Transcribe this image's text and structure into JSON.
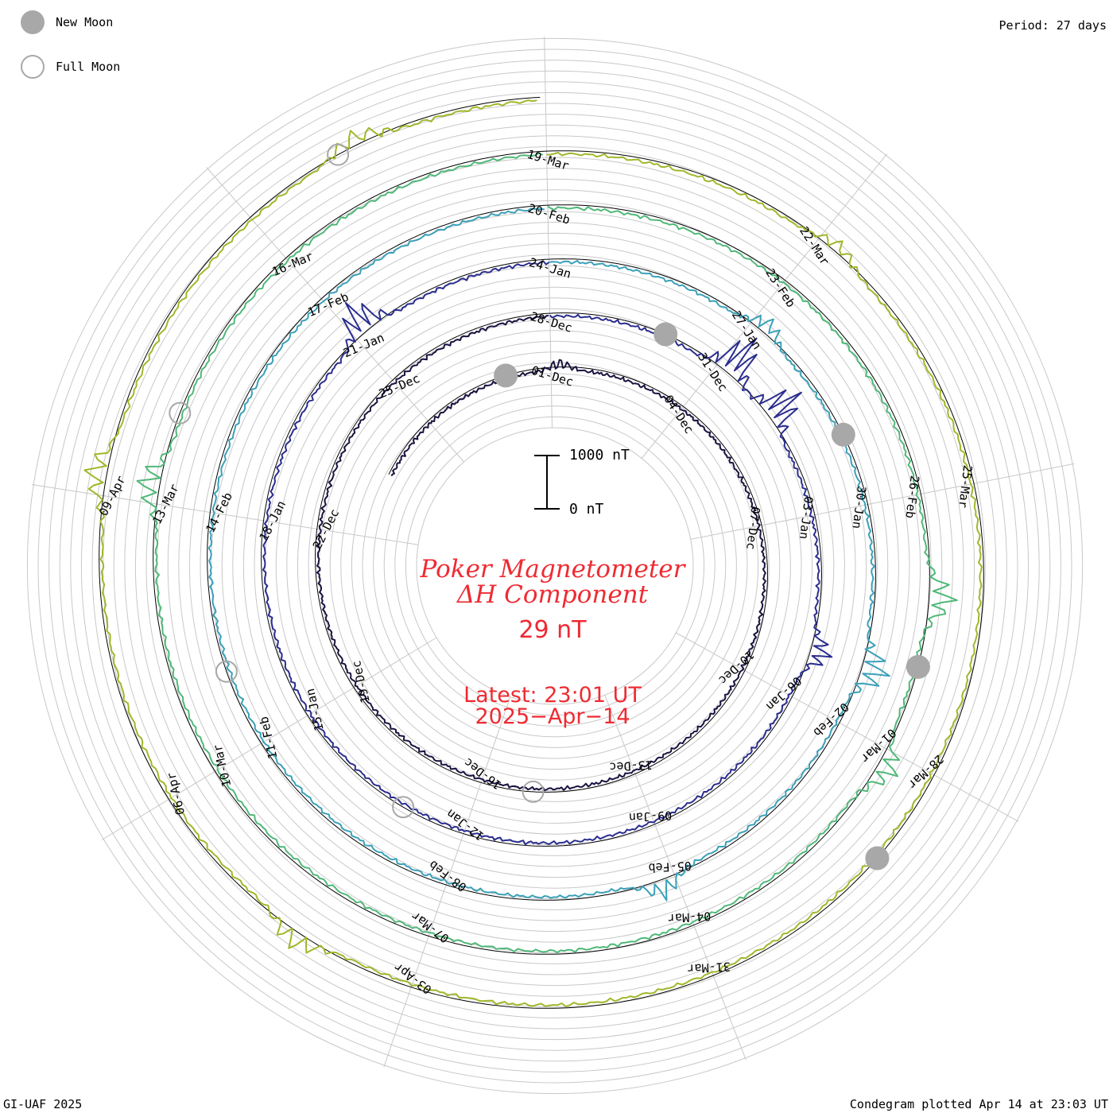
{
  "legend": {
    "new_moon_label": "New Moon",
    "full_moon_label": "Full Moon"
  },
  "period_label": "Period: 27 days",
  "credit": "GI-UAF 2025",
  "plot_stamp": "Condegram plotted Apr 14 at 23:03 UT",
  "chart_data": {
    "type": "line",
    "title_line1": "Poker Magnetometer",
    "title_line2": "ΔH Component",
    "current_value": "29 nT",
    "latest_line1": "Latest: 23:01 UT",
    "latest_line2": "2025−Apr−14",
    "scale_bar": {
      "top_label": "1000 nT",
      "bottom_label": "0 nT",
      "top_value": 1000,
      "bottom_value": 0
    },
    "period_days": 27,
    "colors": {
      "turn1": "#1a1340",
      "turn2": "#2a2d8e",
      "turn3": "#3aa0b8",
      "turn4": "#4fb878",
      "turn5": "#9fb82a",
      "turn6": "#c0861a",
      "turn7": "#b8220e",
      "moon": "#a8a8a8",
      "title": "#ee2b33"
    },
    "date_ticks": [
      "01-Dec",
      "04-Dec",
      "07-Dec",
      "10-Dec",
      "13-Dec",
      "16-Dec",
      "19-Dec",
      "22-Dec",
      "25-Dec",
      "28-Dec",
      "31-Dec",
      "03-Jan",
      "06-Jan",
      "09-Jan",
      "12-Jan",
      "15-Jan",
      "18-Jan",
      "21-Jan",
      "24-Jan",
      "27-Jan",
      "30-Jan",
      "02-Feb",
      "05-Feb",
      "08-Feb",
      "11-Feb",
      "14-Feb",
      "17-Feb",
      "20-Feb",
      "23-Feb",
      "26-Feb",
      "01-Mar",
      "04-Mar",
      "07-Mar",
      "10-Mar",
      "13-Mar",
      "16-Mar",
      "19-Mar",
      "22-Mar",
      "25-Mar",
      "28-Mar",
      "31-Mar",
      "03-Apr",
      "06-Apr",
      "09-Apr"
    ],
    "moon_phases": [
      {
        "type": "new",
        "date": "30-Nov"
      },
      {
        "type": "full",
        "date": "15-Dec"
      },
      {
        "type": "new",
        "date": "30-Dec"
      },
      {
        "type": "full",
        "date": "13-Jan"
      },
      {
        "type": "new",
        "date": "29-Jan"
      },
      {
        "type": "full",
        "date": "12-Feb"
      },
      {
        "type": "new",
        "date": "28-Feb"
      },
      {
        "type": "full",
        "date": "14-Mar"
      },
      {
        "type": "new",
        "date": "29-Mar"
      },
      {
        "type": "full",
        "date": "13-Apr"
      }
    ],
    "events": [
      {
        "date": "01-Dec",
        "value": 200
      },
      {
        "date": "31-Dec",
        "value": 900
      },
      {
        "date": "01-Jan",
        "value": 800
      },
      {
        "date": "05-Jan",
        "value": 500
      },
      {
        "date": "21-Jan",
        "value": 700
      },
      {
        "date": "27-Jan",
        "value": 400
      },
      {
        "date": "01-Feb",
        "value": 600
      },
      {
        "date": "05-Feb",
        "value": 450
      },
      {
        "date": "27-Feb",
        "value": 600
      },
      {
        "date": "01-Mar",
        "value": 500
      },
      {
        "date": "13-Mar",
        "value": 500
      },
      {
        "date": "22-Mar",
        "value": 300
      },
      {
        "date": "04-Apr",
        "value": 400
      },
      {
        "date": "09-Apr",
        "value": 500
      },
      {
        "date": "13-Apr",
        "value": 350
      }
    ]
  }
}
